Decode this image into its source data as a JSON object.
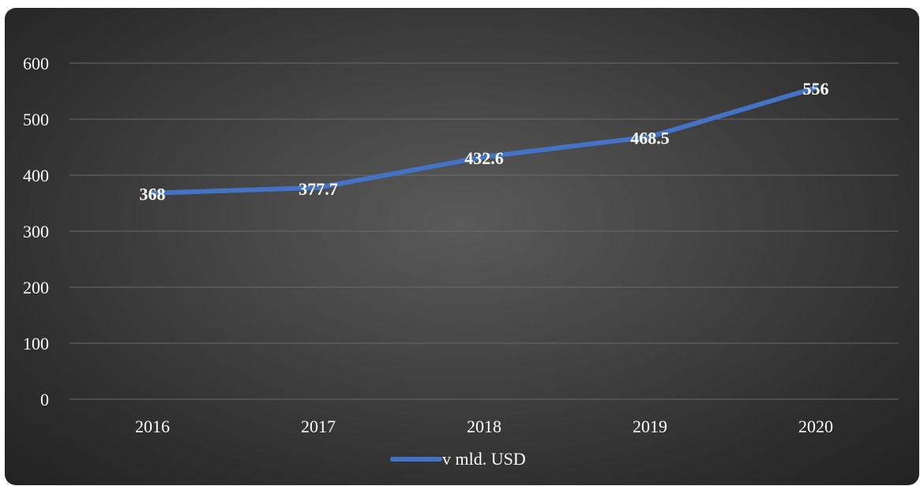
{
  "chart_data": {
    "type": "line",
    "categories": [
      "2016",
      "2017",
      "2018",
      "2019",
      "2020"
    ],
    "series": [
      {
        "name": "v mld. USD",
        "values": [
          368,
          377.7,
          432.6,
          468.5,
          556
        ],
        "labels": [
          "368",
          "377.7",
          "432.6",
          "468.5",
          "556"
        ]
      }
    ],
    "yticks": [
      "0",
      "100",
      "200",
      "300",
      "400",
      "500",
      "600"
    ],
    "ylim": [
      0,
      600
    ],
    "grid": true,
    "legend": "bottom",
    "colors": {
      "line": "#4472c4",
      "grid": "#6a6a6a",
      "text": "#ffffff"
    }
  }
}
